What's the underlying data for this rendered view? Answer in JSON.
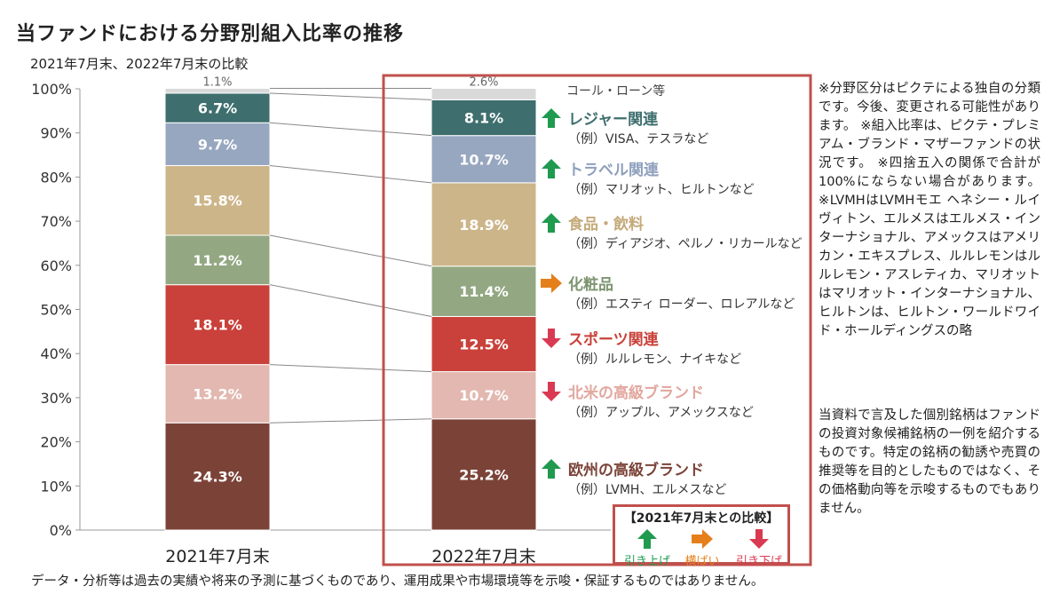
{
  "title": "当ファンドにおける分野別組入比率の推移",
  "subtitle": "2021年7月末、2022年7月末の比較",
  "chart_data": {
    "type": "bar",
    "stacked": true,
    "percent": true,
    "categories": [
      "2021年7月末",
      "2022年7月末"
    ],
    "ylim": [
      0,
      100
    ],
    "yticks": [
      "0%",
      "10%",
      "20%",
      "30%",
      "40%",
      "50%",
      "60%",
      "70%",
      "80%",
      "90%",
      "100%"
    ],
    "series": [
      {
        "name": "欧州の高級ブランド",
        "color": "#7b4338",
        "text_color": "#7b4338",
        "values": [
          24.3,
          25.2
        ],
        "labels": [
          "24.3%",
          "25.2%"
        ],
        "example": "（例）LVMH、エルメスなど",
        "trend": "up"
      },
      {
        "name": "北米の高級ブランド",
        "color": "#e2b8b0",
        "text_color": "#e2a79e",
        "values": [
          13.2,
          10.7
        ],
        "labels": [
          "13.2%",
          "10.7%"
        ],
        "example": "（例）アップル、アメックスなど",
        "trend": "down"
      },
      {
        "name": "スポーツ関連",
        "color": "#c9413a",
        "text_color": "#c9413a",
        "values": [
          18.1,
          12.5
        ],
        "labels": [
          "18.1%",
          "12.5%"
        ],
        "example": "（例）ルルレモン、ナイキなど",
        "trend": "down"
      },
      {
        "name": "化粧品",
        "color": "#93a882",
        "text_color": "#7d9470",
        "values": [
          11.2,
          11.4
        ],
        "labels": [
          "11.2%",
          "11.4%"
        ],
        "example": "（例）エスティ ローダー、ロレアルなど",
        "trend": "flat"
      },
      {
        "name": "食品・飲料",
        "color": "#cdb58a",
        "text_color": "#c4aa7a",
        "values": [
          15.8,
          18.9
        ],
        "labels": [
          "15.8%",
          "18.9%"
        ],
        "example": "（例）ディアジオ、ペルノ・リカールなど",
        "trend": "up"
      },
      {
        "name": "トラベル関連",
        "color": "#97a7c0",
        "text_color": "#8fa0bd",
        "values": [
          9.7,
          10.7
        ],
        "labels": [
          "9.7%",
          "10.7%"
        ],
        "example": "（例）マリオット、ヒルトンなど",
        "trend": "up"
      },
      {
        "name": "レジャー関連",
        "color": "#3e6e6e",
        "text_color": "#3e6e6e",
        "values": [
          6.7,
          8.1
        ],
        "labels": [
          "6.7%",
          "8.1%"
        ],
        "example": "（例）VISA、テスラなど",
        "trend": "up"
      },
      {
        "name": "コール・ローン等",
        "color": "#d9d9d9",
        "text_color": "#444444",
        "values": [
          1.1,
          2.6
        ],
        "labels": [
          "1.1%",
          "2.6%"
        ],
        "example": "",
        "trend": ""
      }
    ],
    "trend_colors": {
      "up": "#1f9a4e",
      "flat": "#e47f1b",
      "down": "#d93a52"
    },
    "highlight_color": "#c0504d"
  },
  "legend": {
    "title": "【2021年7月末との比較】",
    "items": [
      {
        "label": "引き上げ",
        "trend": "up",
        "color": "#1f9a4e"
      },
      {
        "label": "横ばい",
        "trend": "flat",
        "color": "#e47f1b"
      },
      {
        "label": "引き下げ",
        "trend": "down",
        "color": "#d93a52"
      }
    ]
  },
  "notes": "※分野区分はピクテによる独自の分類です。今後、変更される可能性があります。 ※組入比率は、ピクテ・プレミアム・ブランド・マザーファンドの状況です。 ※四捨五入の関係で合計が100%にならない場合があります。 ※LVMHはLVMHモエ ヘネシー・ルイ ヴィトン、エルメスはエルメス・インターナショナル、アメックスはアメリカン・エキスプレス、ルルレモンはルルレモン・アスレティカ、マリオットはマリオット・インターナショナル、ヒルトンは、ヒルトン・ワールドワイド・ホールディングスの略",
  "disclaimer": "当資料で言及した個別銘柄はファンドの投資対象候補銘柄の一例を紹介するものです。特定の銘柄の勧誘や売買の推奨等を目的としたものではなく、その価格動向等を示唆するものでもありません。",
  "footer": "データ・分析等は過去の実績や将来の予測に基づくものであり、運用成果や市場環境等を示唆・保証するものではありません。"
}
